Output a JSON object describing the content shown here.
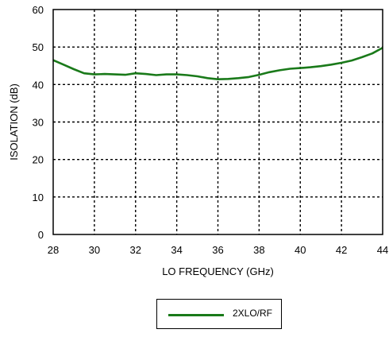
{
  "chart_data": {
    "type": "line",
    "xlabel": "LO FREQUENCY (GHz)",
    "ylabel": "ISOLATION (dB)",
    "xlim": [
      28,
      44
    ],
    "ylim": [
      0,
      60
    ],
    "xticks": [
      28,
      30,
      32,
      34,
      36,
      38,
      40,
      42,
      44
    ],
    "yticks": [
      0,
      10,
      20,
      30,
      40,
      50,
      60
    ],
    "xtick_labels": [
      "28",
      "30",
      "32",
      "34",
      "36",
      "38",
      "40",
      "42",
      "44"
    ],
    "ytick_labels": [
      "0",
      "10",
      "20",
      "30",
      "40",
      "50",
      "60"
    ],
    "grid": true,
    "legend_position": "bottom-center",
    "series": [
      {
        "name": "2XLO/RF",
        "color": "#1a7a1a",
        "x": [
          28,
          28.5,
          29,
          29.5,
          30,
          30.5,
          31,
          31.5,
          32,
          32.5,
          33,
          33.5,
          34,
          34.5,
          35,
          35.5,
          36,
          36.5,
          37,
          37.5,
          38,
          38.5,
          39,
          39.5,
          40,
          40.5,
          41,
          41.5,
          42,
          42.5,
          43,
          43.5,
          44
        ],
        "y": [
          46.5,
          45.3,
          44.1,
          43.0,
          42.7,
          42.8,
          42.7,
          42.6,
          43.0,
          42.8,
          42.5,
          42.7,
          42.7,
          42.5,
          42.2,
          41.7,
          41.4,
          41.5,
          41.7,
          42.0,
          42.6,
          43.3,
          43.8,
          44.2,
          44.4,
          44.6,
          44.9,
          45.3,
          45.8,
          46.4,
          47.3,
          48.3,
          49.8
        ]
      }
    ]
  }
}
